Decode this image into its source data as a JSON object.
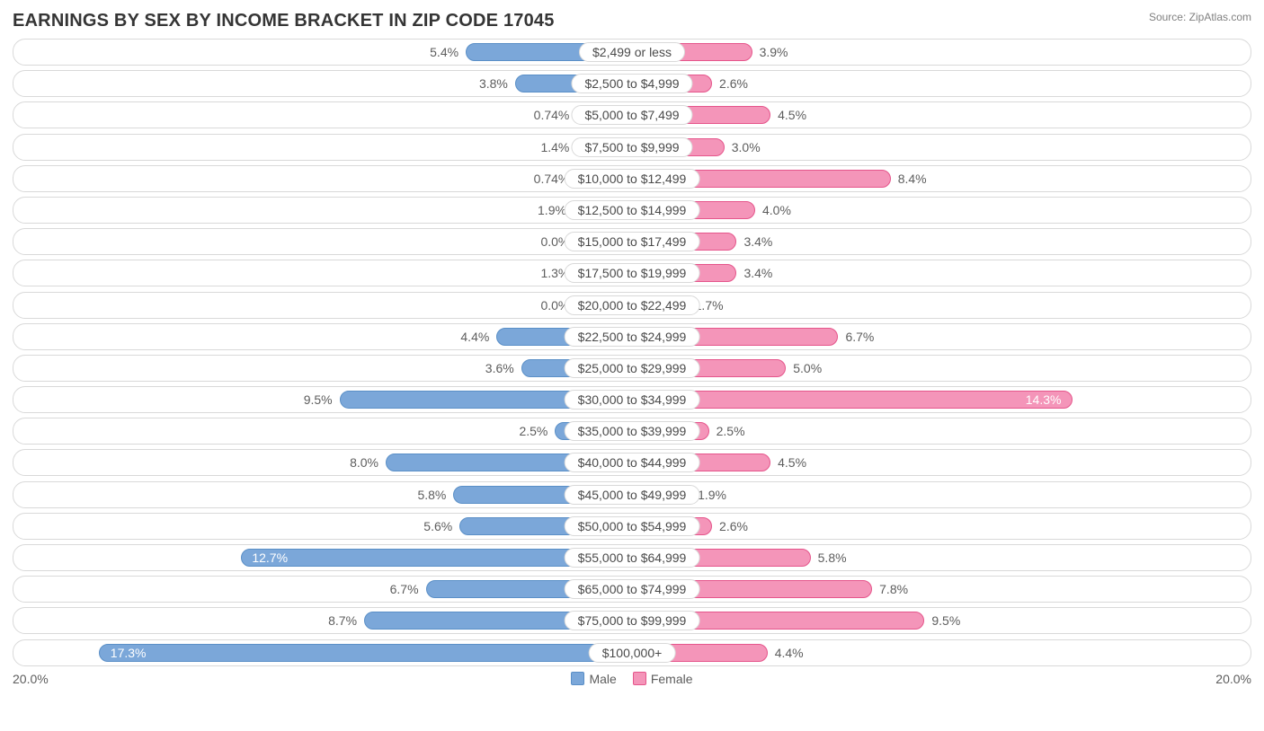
{
  "title": "EARNINGS BY SEX BY INCOME BRACKET IN ZIP CODE 17045",
  "source": "Source: ZipAtlas.com",
  "chart": {
    "type": "diverging-bar",
    "max_percent": 20.0,
    "inside_threshold": 10.0,
    "axis_left_label": "20.0%",
    "axis_right_label": "20.0%",
    "colors": {
      "male_fill": "#7ba7d9",
      "male_border": "#5a8fc7",
      "female_fill": "#f495b9",
      "female_border": "#e5558b",
      "row_border": "#d9d9d9",
      "text": "#5d5d5d",
      "title_text": "#353535",
      "background": "#ffffff"
    },
    "legend": {
      "male": "Male",
      "female": "Female"
    },
    "rows": [
      {
        "label": "$2,499 or less",
        "male": 5.4,
        "female": 3.9,
        "male_txt": "5.4%",
        "female_txt": "3.9%"
      },
      {
        "label": "$2,500 to $4,999",
        "male": 3.8,
        "female": 2.6,
        "male_txt": "3.8%",
        "female_txt": "2.6%"
      },
      {
        "label": "$5,000 to $7,499",
        "male": 0.74,
        "female": 4.5,
        "male_txt": "0.74%",
        "female_txt": "4.5%"
      },
      {
        "label": "$7,500 to $9,999",
        "male": 1.4,
        "female": 3.0,
        "male_txt": "1.4%",
        "female_txt": "3.0%"
      },
      {
        "label": "$10,000 to $12,499",
        "male": 0.74,
        "female": 8.4,
        "male_txt": "0.74%",
        "female_txt": "8.4%"
      },
      {
        "label": "$12,500 to $14,999",
        "male": 1.9,
        "female": 4.0,
        "male_txt": "1.9%",
        "female_txt": "4.0%"
      },
      {
        "label": "$15,000 to $17,499",
        "male": 0.0,
        "female": 3.4,
        "male_txt": "0.0%",
        "female_txt": "3.4%"
      },
      {
        "label": "$17,500 to $19,999",
        "male": 1.3,
        "female": 3.4,
        "male_txt": "1.3%",
        "female_txt": "3.4%"
      },
      {
        "label": "$20,000 to $22,499",
        "male": 0.0,
        "female": 1.7,
        "male_txt": "0.0%",
        "female_txt": "1.7%"
      },
      {
        "label": "$22,500 to $24,999",
        "male": 4.4,
        "female": 6.7,
        "male_txt": "4.4%",
        "female_txt": "6.7%"
      },
      {
        "label": "$25,000 to $29,999",
        "male": 3.6,
        "female": 5.0,
        "male_txt": "3.6%",
        "female_txt": "5.0%"
      },
      {
        "label": "$30,000 to $34,999",
        "male": 9.5,
        "female": 14.3,
        "male_txt": "9.5%",
        "female_txt": "14.3%"
      },
      {
        "label": "$35,000 to $39,999",
        "male": 2.5,
        "female": 2.5,
        "male_txt": "2.5%",
        "female_txt": "2.5%"
      },
      {
        "label": "$40,000 to $44,999",
        "male": 8.0,
        "female": 4.5,
        "male_txt": "8.0%",
        "female_txt": "4.5%"
      },
      {
        "label": "$45,000 to $49,999",
        "male": 5.8,
        "female": 1.9,
        "male_txt": "5.8%",
        "female_txt": "1.9%"
      },
      {
        "label": "$50,000 to $54,999",
        "male": 5.6,
        "female": 2.6,
        "male_txt": "5.6%",
        "female_txt": "2.6%"
      },
      {
        "label": "$55,000 to $64,999",
        "male": 12.7,
        "female": 5.8,
        "male_txt": "12.7%",
        "female_txt": "5.8%"
      },
      {
        "label": "$65,000 to $74,999",
        "male": 6.7,
        "female": 7.8,
        "male_txt": "6.7%",
        "female_txt": "7.8%"
      },
      {
        "label": "$75,000 to $99,999",
        "male": 8.7,
        "female": 9.5,
        "male_txt": "8.7%",
        "female_txt": "9.5%"
      },
      {
        "label": "$100,000+",
        "male": 17.3,
        "female": 4.4,
        "male_txt": "17.3%",
        "female_txt": "4.4%"
      }
    ]
  }
}
